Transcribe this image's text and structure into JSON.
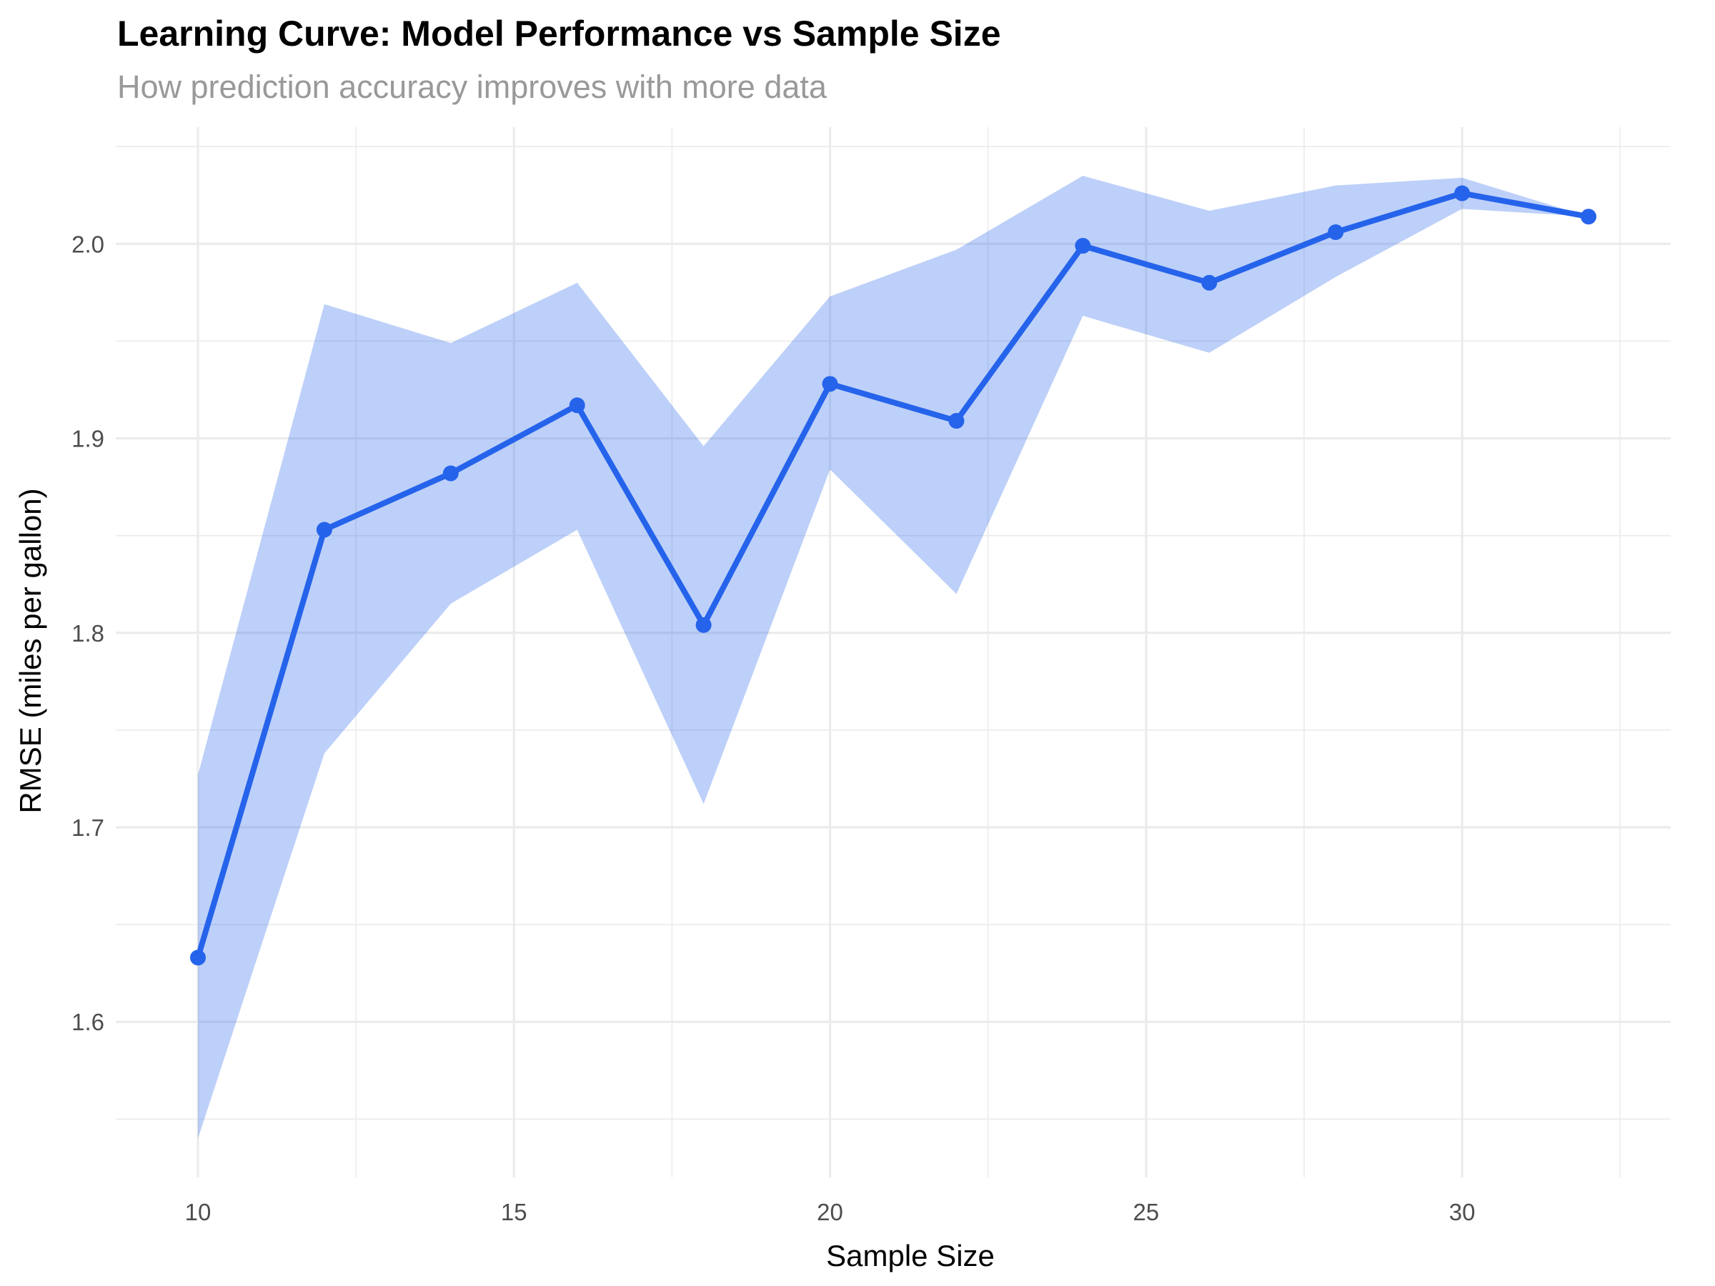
{
  "chart_data": {
    "type": "line",
    "title": "Learning Curve: Model Performance vs Sample Size",
    "subtitle": "How prediction accuracy improves with more data",
    "xlabel": "Sample Size",
    "ylabel": "RMSE (miles per gallon)",
    "xlim": [
      8.7,
      33.3
    ],
    "ylim": [
      1.52,
      2.06
    ],
    "xticks": [
      10,
      15,
      20,
      25,
      30
    ],
    "xtick_labels": [
      "10",
      "15",
      "20",
      "25",
      "30"
    ],
    "yticks": [
      1.6,
      1.7,
      1.8,
      1.9,
      2.0
    ],
    "ytick_labels": [
      "1.6",
      "1.7",
      "1.8",
      "1.9",
      "2.0"
    ],
    "grid": true,
    "colors": {
      "line": "#2563eb",
      "ribbon": "#2563eb",
      "grid": "#ebebeb"
    },
    "series": [
      {
        "x": [
          10,
          12,
          14,
          16,
          18,
          20,
          22,
          24,
          26,
          28,
          30,
          32
        ],
        "y": [
          1.633,
          1.853,
          1.882,
          1.917,
          1.804,
          1.928,
          1.909,
          1.999,
          1.98,
          2.006,
          2.026,
          2.014
        ],
        "lower": [
          1.54,
          1.738,
          1.815,
          1.853,
          1.712,
          1.884,
          1.82,
          1.963,
          1.944,
          1.983,
          2.018,
          2.014
        ],
        "upper": [
          1.727,
          1.969,
          1.949,
          1.98,
          1.896,
          1.973,
          1.997,
          2.035,
          2.017,
          2.03,
          2.034,
          2.014
        ]
      }
    ]
  }
}
